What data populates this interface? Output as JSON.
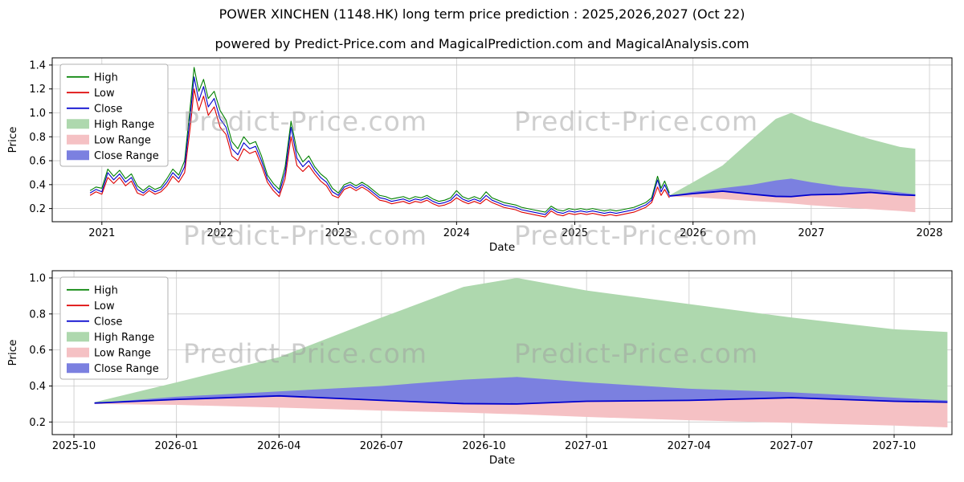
{
  "header": {
    "title": "POWER XINCHEN (1148.HK) long term price prediction : 2025,2026,2027 (Oct 22)",
    "subtitle": "powered by Predict-Price.com and MagicalPrediction.com and MagicalAnalysis.com"
  },
  "watermark": {
    "text": "Predict-Price.com"
  },
  "colors": {
    "high": "#008000",
    "low": "#dd0000",
    "close": "#0000cd",
    "high_range": "#aed8ae",
    "low_range": "#f5c1c4",
    "close_range": "#7b80e0",
    "grid": "#c9c9c9",
    "spine": "#000000"
  },
  "chart_data": [
    {
      "type": "line",
      "name": "historical-and-forecast-chart",
      "title": "powered by Predict-Price.com and MagicalPrediction.com and MagicalAnalysis.com",
      "xlabel": "Date",
      "ylabel": "Price",
      "grid": true,
      "legend_position": "upper left",
      "legend": [
        "High",
        "Low",
        "Close",
        "High Range",
        "Low Range",
        "Close Range"
      ],
      "xlim": [
        2020.58,
        2028.19
      ],
      "ylim": [
        0.09,
        1.46
      ],
      "xticks": [
        {
          "v": 2021,
          "label": "2021"
        },
        {
          "v": 2022,
          "label": "2022"
        },
        {
          "v": 2023,
          "label": "2023"
        },
        {
          "v": 2024,
          "label": "2024"
        },
        {
          "v": 2025,
          "label": "2025"
        },
        {
          "v": 2026,
          "label": "2026"
        },
        {
          "v": 2027,
          "label": "2027"
        },
        {
          "v": 2028,
          "label": "2028"
        }
      ],
      "yticks": [
        {
          "v": 0.2,
          "label": "0.2"
        },
        {
          "v": 0.4,
          "label": "0.4"
        },
        {
          "v": 0.6,
          "label": "0.6"
        },
        {
          "v": 0.8,
          "label": "0.8"
        },
        {
          "v": 1.0,
          "label": "1.0"
        },
        {
          "v": 1.2,
          "label": "1.2"
        },
        {
          "v": 1.4,
          "label": "1.4"
        }
      ],
      "historical": [
        [
          2020.9,
          0.35,
          0.31,
          0.33
        ],
        [
          2020.95,
          0.38,
          0.34,
          0.36
        ],
        [
          2021.0,
          0.37,
          0.32,
          0.34
        ],
        [
          2021.05,
          0.53,
          0.46,
          0.5
        ],
        [
          2021.1,
          0.47,
          0.41,
          0.44
        ],
        [
          2021.15,
          0.52,
          0.46,
          0.49
        ],
        [
          2021.2,
          0.45,
          0.39,
          0.42
        ],
        [
          2021.25,
          0.49,
          0.43,
          0.46
        ],
        [
          2021.3,
          0.39,
          0.33,
          0.36
        ],
        [
          2021.35,
          0.35,
          0.31,
          0.33
        ],
        [
          2021.4,
          0.39,
          0.35,
          0.37
        ],
        [
          2021.45,
          0.36,
          0.32,
          0.34
        ],
        [
          2021.5,
          0.38,
          0.34,
          0.36
        ],
        [
          2021.55,
          0.45,
          0.39,
          0.42
        ],
        [
          2021.6,
          0.53,
          0.47,
          0.5
        ],
        [
          2021.65,
          0.48,
          0.42,
          0.45
        ],
        [
          2021.7,
          0.6,
          0.5,
          0.55
        ],
        [
          2021.75,
          1.08,
          0.9,
          1.0
        ],
        [
          2021.78,
          1.38,
          1.2,
          1.3
        ],
        [
          2021.82,
          1.18,
          1.02,
          1.1
        ],
        [
          2021.86,
          1.28,
          1.14,
          1.22
        ],
        [
          2021.9,
          1.12,
          0.98,
          1.05
        ],
        [
          2021.95,
          1.18,
          1.05,
          1.12
        ],
        [
          2022.0,
          1.02,
          0.88,
          0.95
        ],
        [
          2022.05,
          0.94,
          0.82,
          0.88
        ],
        [
          2022.1,
          0.76,
          0.64,
          0.7
        ],
        [
          2022.15,
          0.7,
          0.6,
          0.65
        ],
        [
          2022.2,
          0.8,
          0.7,
          0.75
        ],
        [
          2022.25,
          0.74,
          0.66,
          0.7
        ],
        [
          2022.3,
          0.76,
          0.68,
          0.72
        ],
        [
          2022.35,
          0.64,
          0.56,
          0.6
        ],
        [
          2022.4,
          0.48,
          0.42,
          0.45
        ],
        [
          2022.45,
          0.41,
          0.35,
          0.38
        ],
        [
          2022.5,
          0.36,
          0.3,
          0.33
        ],
        [
          2022.55,
          0.55,
          0.45,
          0.5
        ],
        [
          2022.6,
          0.93,
          0.8,
          0.88
        ],
        [
          2022.65,
          0.68,
          0.56,
          0.62
        ],
        [
          2022.7,
          0.59,
          0.51,
          0.55
        ],
        [
          2022.75,
          0.64,
          0.56,
          0.6
        ],
        [
          2022.8,
          0.55,
          0.49,
          0.52
        ],
        [
          2022.85,
          0.49,
          0.43,
          0.46
        ],
        [
          2022.9,
          0.45,
          0.39,
          0.42
        ],
        [
          2022.95,
          0.37,
          0.31,
          0.34
        ],
        [
          2023.0,
          0.33,
          0.29,
          0.31
        ],
        [
          2023.05,
          0.4,
          0.36,
          0.38
        ],
        [
          2023.1,
          0.42,
          0.38,
          0.4
        ],
        [
          2023.15,
          0.39,
          0.35,
          0.37
        ],
        [
          2023.2,
          0.42,
          0.38,
          0.4
        ],
        [
          2023.25,
          0.39,
          0.35,
          0.37
        ],
        [
          2023.3,
          0.35,
          0.31,
          0.33
        ],
        [
          2023.35,
          0.31,
          0.27,
          0.29
        ],
        [
          2023.4,
          0.3,
          0.26,
          0.28
        ],
        [
          2023.45,
          0.28,
          0.24,
          0.26
        ],
        [
          2023.5,
          0.29,
          0.25,
          0.27
        ],
        [
          2023.55,
          0.3,
          0.26,
          0.28
        ],
        [
          2023.6,
          0.28,
          0.24,
          0.26
        ],
        [
          2023.65,
          0.3,
          0.26,
          0.28
        ],
        [
          2023.7,
          0.29,
          0.25,
          0.27
        ],
        [
          2023.75,
          0.31,
          0.27,
          0.29
        ],
        [
          2023.8,
          0.28,
          0.24,
          0.26
        ],
        [
          2023.85,
          0.26,
          0.22,
          0.24
        ],
        [
          2023.9,
          0.27,
          0.23,
          0.25
        ],
        [
          2023.95,
          0.29,
          0.25,
          0.27
        ],
        [
          2024.0,
          0.35,
          0.29,
          0.32
        ],
        [
          2024.05,
          0.3,
          0.26,
          0.28
        ],
        [
          2024.1,
          0.28,
          0.24,
          0.26
        ],
        [
          2024.15,
          0.3,
          0.26,
          0.28
        ],
        [
          2024.2,
          0.28,
          0.24,
          0.26
        ],
        [
          2024.25,
          0.34,
          0.28,
          0.31
        ],
        [
          2024.3,
          0.29,
          0.25,
          0.27
        ],
        [
          2024.35,
          0.27,
          0.23,
          0.25
        ],
        [
          2024.4,
          0.25,
          0.21,
          0.23
        ],
        [
          2024.45,
          0.24,
          0.2,
          0.22
        ],
        [
          2024.5,
          0.23,
          0.19,
          0.21
        ],
        [
          2024.55,
          0.21,
          0.17,
          0.19
        ],
        [
          2024.6,
          0.2,
          0.16,
          0.18
        ],
        [
          2024.65,
          0.19,
          0.15,
          0.17
        ],
        [
          2024.7,
          0.18,
          0.14,
          0.16
        ],
        [
          2024.75,
          0.17,
          0.13,
          0.15
        ],
        [
          2024.8,
          0.22,
          0.18,
          0.2
        ],
        [
          2024.85,
          0.19,
          0.15,
          0.17
        ],
        [
          2024.9,
          0.18,
          0.14,
          0.16
        ],
        [
          2024.95,
          0.2,
          0.16,
          0.18
        ],
        [
          2025.0,
          0.19,
          0.15,
          0.17
        ],
        [
          2025.05,
          0.2,
          0.16,
          0.18
        ],
        [
          2025.1,
          0.19,
          0.15,
          0.17
        ],
        [
          2025.15,
          0.2,
          0.16,
          0.18
        ],
        [
          2025.2,
          0.19,
          0.15,
          0.17
        ],
        [
          2025.25,
          0.18,
          0.14,
          0.16
        ],
        [
          2025.3,
          0.19,
          0.15,
          0.17
        ],
        [
          2025.35,
          0.18,
          0.14,
          0.16
        ],
        [
          2025.4,
          0.19,
          0.15,
          0.17
        ],
        [
          2025.45,
          0.2,
          0.16,
          0.18
        ],
        [
          2025.5,
          0.21,
          0.17,
          0.19
        ],
        [
          2025.55,
          0.23,
          0.19,
          0.21
        ],
        [
          2025.6,
          0.25,
          0.21,
          0.23
        ],
        [
          2025.65,
          0.29,
          0.25,
          0.27
        ],
        [
          2025.7,
          0.47,
          0.38,
          0.44
        ],
        [
          2025.73,
          0.37,
          0.31,
          0.34
        ],
        [
          2025.76,
          0.43,
          0.36,
          0.4
        ],
        [
          2025.8,
          0.33,
          0.29,
          0.31
        ]
      ],
      "forecast": {
        "x": [
          2025.8,
          2026.0,
          2026.25,
          2026.5,
          2026.7,
          2026.83,
          2027.0,
          2027.25,
          2027.5,
          2027.75,
          2027.88
        ],
        "high": [
          0.31,
          0.42,
          0.56,
          0.78,
          0.95,
          1.0,
          0.93,
          0.855,
          0.78,
          0.715,
          0.7
        ],
        "low": [
          0.3,
          0.295,
          0.28,
          0.263,
          0.252,
          0.243,
          0.228,
          0.21,
          0.195,
          0.18,
          0.17
        ],
        "close": [
          0.305,
          0.325,
          0.345,
          0.32,
          0.302,
          0.3,
          0.315,
          0.32,
          0.335,
          0.315,
          0.31
        ],
        "close_upper": [
          0.305,
          0.34,
          0.37,
          0.4,
          0.435,
          0.45,
          0.42,
          0.385,
          0.365,
          0.335,
          0.32
        ]
      }
    },
    {
      "type": "line",
      "name": "forecast-detail-chart",
      "title": "",
      "xlabel": "Date",
      "ylabel": "Price",
      "grid": true,
      "legend_position": "upper left",
      "legend": [
        "High",
        "Low",
        "Close",
        "High Range",
        "Low Range",
        "Close Range"
      ],
      "xlim": [
        2025.697,
        2027.891
      ],
      "ylim": [
        0.13,
        1.04
      ],
      "xticks": [
        {
          "v": 2025.75,
          "label": "2025-10"
        },
        {
          "v": 2026.0,
          "label": "2026-01"
        },
        {
          "v": 2026.25,
          "label": "2026-04"
        },
        {
          "v": 2026.5,
          "label": "2026-07"
        },
        {
          "v": 2026.75,
          "label": "2026-10"
        },
        {
          "v": 2027.0,
          "label": "2027-01"
        },
        {
          "v": 2027.25,
          "label": "2027-04"
        },
        {
          "v": 2027.5,
          "label": "2027-07"
        },
        {
          "v": 2027.75,
          "label": "2027-10"
        }
      ],
      "yticks": [
        {
          "v": 0.2,
          "label": "0.2"
        },
        {
          "v": 0.4,
          "label": "0.4"
        },
        {
          "v": 0.6,
          "label": "0.6"
        },
        {
          "v": 0.8,
          "label": "0.8"
        },
        {
          "v": 1.0,
          "label": "1.0"
        }
      ],
      "historical": null,
      "forecast": {
        "x": [
          2025.8,
          2026.0,
          2026.25,
          2026.5,
          2026.7,
          2026.83,
          2027.0,
          2027.25,
          2027.5,
          2027.75,
          2027.88
        ],
        "high": [
          0.31,
          0.42,
          0.56,
          0.78,
          0.95,
          1.0,
          0.93,
          0.855,
          0.78,
          0.715,
          0.7
        ],
        "low": [
          0.3,
          0.295,
          0.28,
          0.263,
          0.252,
          0.243,
          0.228,
          0.21,
          0.195,
          0.18,
          0.17
        ],
        "close": [
          0.305,
          0.325,
          0.345,
          0.32,
          0.302,
          0.3,
          0.315,
          0.32,
          0.335,
          0.315,
          0.31
        ],
        "close_upper": [
          0.305,
          0.34,
          0.37,
          0.4,
          0.435,
          0.45,
          0.42,
          0.385,
          0.365,
          0.335,
          0.32
        ]
      }
    }
  ]
}
